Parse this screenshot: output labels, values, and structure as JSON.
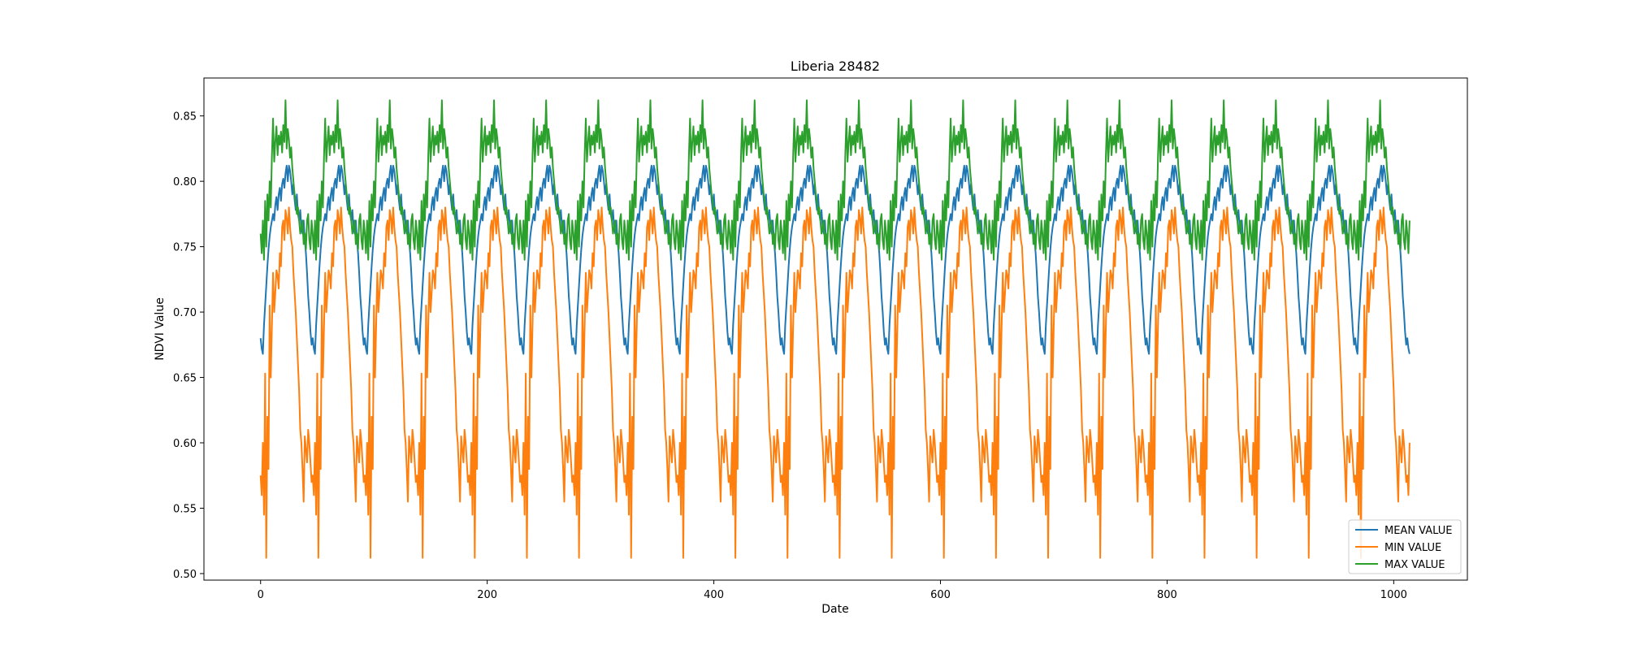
{
  "chart_data": {
    "type": "line",
    "title": "Liberia 28482",
    "xlabel": "Date",
    "ylabel": "NDVI Value",
    "xlim": [
      -50,
      1065
    ],
    "ylim": [
      0.495,
      0.879
    ],
    "x_ticks": [
      0,
      200,
      400,
      600,
      800,
      1000
    ],
    "y_ticks": [
      0.5,
      0.55,
      0.6,
      0.65,
      0.7,
      0.75,
      0.8,
      0.85
    ],
    "grid": false,
    "legend_position": "lower-right",
    "x_count": 1015,
    "cycle_length": 46,
    "series": [
      {
        "name": "MEAN VALUE",
        "color": "#1f77b4",
        "cycle_values": [
          0.68,
          0.672,
          0.668,
          0.69,
          0.705,
          0.72,
          0.735,
          0.748,
          0.758,
          0.765,
          0.77,
          0.775,
          0.77,
          0.782,
          0.788,
          0.778,
          0.79,
          0.795,
          0.785,
          0.798,
          0.802,
          0.795,
          0.806,
          0.812,
          0.8,
          0.812,
          0.808,
          0.8,
          0.79,
          0.798,
          0.786,
          0.778,
          0.79,
          0.775,
          0.77,
          0.778,
          0.765,
          0.76,
          0.77,
          0.755,
          0.745,
          0.73,
          0.712,
          0.7,
          0.685,
          0.675
        ]
      },
      {
        "name": "MIN VALUE",
        "color": "#ff7f0e",
        "cycle_values": [
          0.575,
          0.56,
          0.6,
          0.545,
          0.653,
          0.512,
          0.62,
          0.58,
          0.705,
          0.65,
          0.69,
          0.73,
          0.7,
          0.715,
          0.732,
          0.728,
          0.718,
          0.745,
          0.735,
          0.765,
          0.77,
          0.755,
          0.778,
          0.772,
          0.76,
          0.78,
          0.765,
          0.755,
          0.75,
          0.73,
          0.715,
          0.7,
          0.68,
          0.66,
          0.64,
          0.61,
          0.6,
          0.58,
          0.555,
          0.605,
          0.595,
          0.585,
          0.61,
          0.6,
          0.585,
          0.57
        ]
      },
      {
        "name": "MAX VALUE",
        "color": "#2ca02c",
        "cycle_values": [
          0.76,
          0.745,
          0.77,
          0.74,
          0.785,
          0.75,
          0.79,
          0.77,
          0.8,
          0.78,
          0.82,
          0.848,
          0.815,
          0.83,
          0.842,
          0.82,
          0.835,
          0.828,
          0.838,
          0.822,
          0.843,
          0.83,
          0.862,
          0.825,
          0.84,
          0.832,
          0.818,
          0.826,
          0.81,
          0.8,
          0.79,
          0.785,
          0.775,
          0.78,
          0.77,
          0.76,
          0.765,
          0.77,
          0.752,
          0.76,
          0.748,
          0.77,
          0.775,
          0.755,
          0.748,
          0.77
        ]
      }
    ]
  }
}
